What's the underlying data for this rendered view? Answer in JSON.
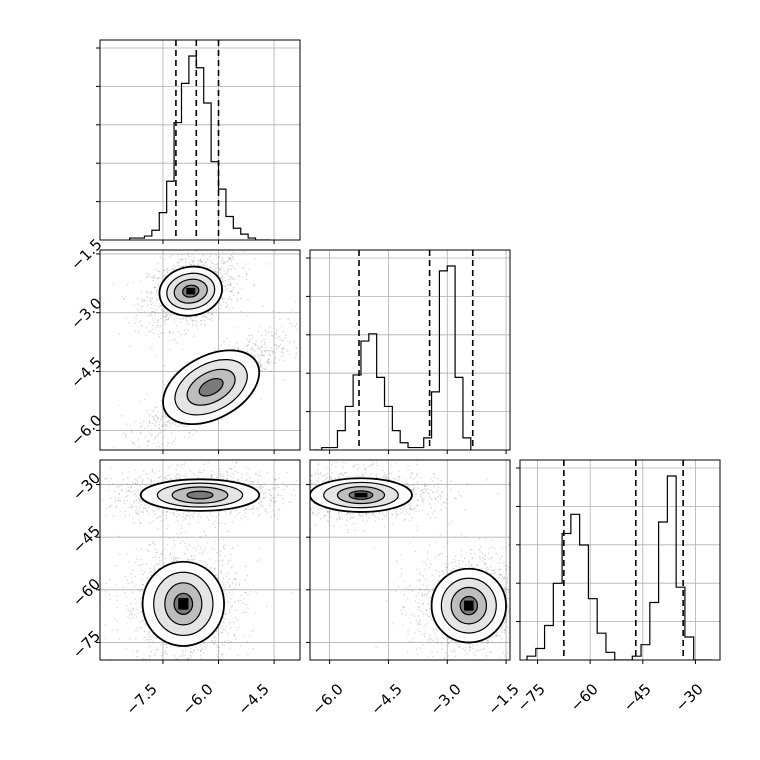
{
  "chart_data": {
    "type": "corner",
    "parameters": 3,
    "grid": true,
    "colors": {
      "line": "#000000",
      "grid": "#b0b0b0",
      "samples": "#7f7f7f",
      "contour_fill": [
        "#ffffff",
        "#e5e5e5",
        "#bdbdbd",
        "#7a7a7a",
        "#3a3a3a",
        "#000000"
      ]
    },
    "panels": [
      {
        "id": "hist-0",
        "kind": "histogram",
        "xlim": [
          -9.2,
          -3.8
        ],
        "bin_edges_start": -8.4,
        "bin_width": 0.2,
        "counts": [
          1,
          1,
          2,
          5,
          14,
          30,
          60,
          80,
          94,
          88,
          70,
          40,
          26,
          12,
          6,
          3,
          1,
          0,
          0
        ],
        "quantiles": [
          -7.15,
          -6.6,
          -6.0
        ],
        "x_ticks": [
          -7.5,
          -6.0,
          -4.5
        ]
      },
      {
        "id": "scatter-1-0",
        "kind": "density",
        "xlim": [
          -9.2,
          -3.8
        ],
        "ylim": [
          -6.5,
          -1.4
        ],
        "x_ticks": [
          -7.5,
          -6.0,
          -4.5
        ],
        "y_ticks": [
          -1.5,
          -3.0,
          -4.5,
          -6.0
        ],
        "y_tick_labels": [
          "−1.5",
          "−3.0",
          "−4.5",
          "−6.0"
        ],
        "modes": [
          {
            "cx": -6.75,
            "cy": -2.45,
            "rx": [
              0.22,
              0.45,
              0.65,
              0.85
            ],
            "ry": [
              0.15,
              0.3,
              0.45,
              0.62
            ],
            "angle": -10,
            "core": true
          },
          {
            "cx": -6.2,
            "cy": -4.9,
            "rx": [
              0.35,
              0.7,
              1.05,
              1.4
            ],
            "ry": [
              0.18,
              0.38,
              0.6,
              0.8
            ],
            "angle": -28,
            "core": false
          }
        ]
      },
      {
        "id": "hist-1",
        "kind": "histogram",
        "xlim": [
          -6.5,
          -1.4
        ],
        "bin_edges_start": -6.4,
        "bin_width": 0.2,
        "counts": [
          0,
          1,
          1,
          8,
          18,
          31,
          45,
          48,
          30,
          18,
          8,
          3,
          1,
          1,
          5,
          24,
          74,
          76,
          30,
          5
        ],
        "quantiles": [
          -5.25,
          -3.45,
          -2.35
        ],
        "x_ticks": [
          -6.0,
          -4.5,
          -3.0,
          -1.5
        ]
      },
      {
        "id": "scatter-2-0",
        "kind": "density",
        "xlim": [
          -9.2,
          -3.8
        ],
        "ylim": [
          -80,
          -23
        ],
        "x_ticks": [
          -7.5,
          -6.0,
          -4.5
        ],
        "y_ticks": [
          -30,
          -45,
          -60,
          -75
        ],
        "y_tick_labels": [
          "−30",
          "−45",
          "−60",
          "−75"
        ],
        "modes": [
          {
            "cx": -6.5,
            "cy": -33.0,
            "rx": [
              0.35,
              0.75,
              1.15,
              1.6
            ],
            "ry": [
              1.1,
              2.3,
              3.4,
              4.5
            ],
            "angle": 0,
            "core": false
          },
          {
            "cx": -6.95,
            "cy": -64.0,
            "rx": [
              0.25,
              0.5,
              0.8,
              1.1
            ],
            "ry": [
              3.0,
              6.0,
              9.0,
              12.0
            ],
            "angle": 0,
            "core": true
          }
        ]
      },
      {
        "id": "scatter-2-1",
        "kind": "density",
        "xlim": [
          -6.5,
          -1.4
        ],
        "ylim": [
          -80,
          -23
        ],
        "x_ticks": [
          -6.0,
          -4.5,
          -3.0,
          -1.5
        ],
        "y_ticks": [
          -30,
          -45,
          -60,
          -75
        ],
        "modes": [
          {
            "cx": -5.2,
            "cy": -33.0,
            "rx": [
              0.3,
              0.6,
              0.95,
              1.3
            ],
            "ry": [
              1.2,
              2.4,
              3.6,
              4.8
            ],
            "angle": 0,
            "core": true
          },
          {
            "cx": -2.45,
            "cy": -64.5,
            "rx": [
              0.22,
              0.45,
              0.7,
              0.95
            ],
            "ry": [
              2.6,
              5.2,
              7.8,
              10.5
            ],
            "angle": 0,
            "core": true
          }
        ]
      },
      {
        "id": "hist-2",
        "kind": "histogram",
        "xlim": [
          -80,
          -23
        ],
        "bin_edges_start": -78,
        "bin_width": 2.5,
        "counts": [
          1,
          3,
          9,
          20,
          33,
          38,
          30,
          16,
          7,
          2,
          0,
          0,
          1,
          4,
          15,
          36,
          48,
          19,
          6,
          0,
          0
        ],
        "quantiles": [
          -67.5,
          -47.0,
          -33.5
        ],
        "x_ticks": [
          -75,
          -60,
          -45,
          -30
        ]
      }
    ],
    "x_tick_labels": {
      "p0": [
        "−7.5",
        "−6.0",
        "−4.5"
      ],
      "p1": [
        "−6.0",
        "−4.5",
        "−3.0",
        "−1.5"
      ],
      "p2": [
        "−75",
        "−60",
        "−45",
        "−30"
      ]
    }
  }
}
